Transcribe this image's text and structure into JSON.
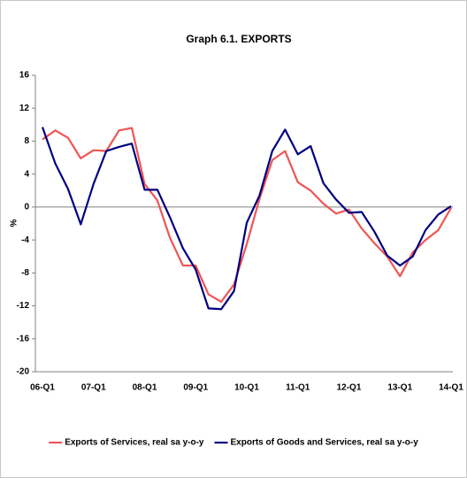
{
  "chart_data": {
    "type": "line",
    "title": "Graph 6.1. EXPORTS",
    "y_label": "%",
    "categories": [
      "06-Q1",
      null,
      null,
      null,
      "07-Q1",
      null,
      null,
      null,
      "08-Q1",
      null,
      null,
      null,
      "09-Q1",
      null,
      null,
      null,
      "10-Q1",
      null,
      null,
      null,
      "11-Q1",
      null,
      null,
      null,
      "12-Q1",
      null,
      null,
      null,
      "13-Q1",
      null,
      null,
      null,
      "14-Q1"
    ],
    "series": [
      {
        "name": "Exports of Services, real sa y-o-y",
        "color": "#f05454",
        "values": [
          8.2,
          9.3,
          8.4,
          5.9,
          6.9,
          6.8,
          9.3,
          9.6,
          2.8,
          0.8,
          -3.8,
          -7.1,
          -7.1,
          -10.6,
          -11.5,
          -9.4,
          -4.5,
          1.0,
          5.7,
          6.8,
          3.0,
          2.0,
          0.4,
          -0.8,
          -0.3,
          -2.6,
          -4.4,
          -6.0,
          -8.4,
          -5.5,
          -4.0,
          -2.8,
          -0.1
        ]
      },
      {
        "name": "Exports of Goods and Services, real sa y-o-y",
        "color": "#000080",
        "values": [
          9.7,
          5.3,
          2.2,
          -2.1,
          2.8,
          6.8,
          7.3,
          7.7,
          2.1,
          2.1,
          -1.3,
          -5.0,
          -7.6,
          -12.3,
          -12.4,
          -10.2,
          -1.9,
          1.4,
          6.8,
          9.4,
          6.4,
          7.4,
          2.9,
          0.9,
          -0.7,
          -0.6,
          -3.0,
          -5.9,
          -7.1,
          -6.0,
          -2.8,
          -0.9,
          0.1
        ]
      }
    ],
    "ylim": [
      -20,
      16
    ],
    "yticks": [
      -20,
      -16,
      -12,
      -8,
      -4,
      0,
      4,
      8,
      12,
      16
    ],
    "legend": "bottom"
  }
}
